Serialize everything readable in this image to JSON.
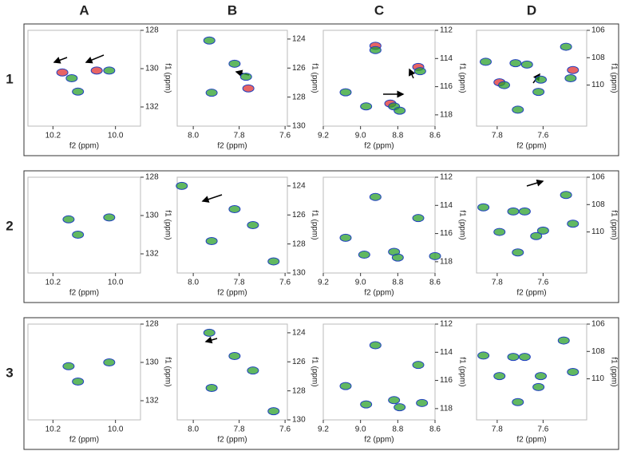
{
  "column_labels": [
    "A",
    "B",
    "C",
    "D"
  ],
  "row_labels": [
    "1",
    "2",
    "3"
  ],
  "chart_data": [
    {
      "type": "scatter",
      "x_label": "f2 (ppm)",
      "y_label": "f1 (ppm)",
      "xlim": [
        10.28,
        9.92
      ],
      "xticks": [
        10.2,
        {
          "value": 10,
          "label": "10.0"
        }
      ],
      "ylim": [
        128,
        133
      ],
      "yticks": [
        128,
        130,
        132
      ],
      "series": [
        {
          "color": "#e03030",
          "x": [
            10.17,
            10.06
          ],
          "y": [
            130.2,
            130.1
          ]
        },
        {
          "color": "#2ca02c",
          "x": [
            10.14,
            10.02,
            10.12
          ],
          "y": [
            130.5,
            130.1,
            131.2
          ]
        }
      ]
    },
    {
      "type": "scatter",
      "x_label": "f2 (ppm)",
      "y_label": "f1 (ppm)",
      "xlim": [
        8.07,
        7.59
      ],
      "xticks": [
        {
          "value": 8,
          "label": "8.0"
        },
        7.8,
        7.6
      ],
      "ylim": [
        123.4,
        130
      ],
      "yticks": [
        124,
        126,
        128,
        130
      ],
      "series": [
        {
          "color": "#e03030",
          "x": [
            7.76
          ],
          "y": [
            127.4
          ]
        },
        {
          "color": "#2ca02c",
          "x": [
            7.93,
            7.82,
            7.77,
            7.92
          ],
          "y": [
            124.1,
            125.7,
            126.6,
            127.7
          ]
        }
      ]
    },
    {
      "type": "scatter",
      "x_label": "f2 (ppm)",
      "y_label": "f1 (ppm)",
      "xlim": [
        9.2,
        8.6
      ],
      "xticks": [
        9.2,
        {
          "value": 9,
          "label": "9.0"
        },
        8.8,
        8.6
      ],
      "ylim": [
        112,
        118.8
      ],
      "yticks": [
        112,
        114,
        116,
        118
      ],
      "series": [
        {
          "color": "#e03030",
          "x": [
            8.92,
            8.69,
            8.84
          ],
          "y": [
            113.1,
            114.6,
            117.2
          ]
        },
        {
          "color": "#2ca02c",
          "x": [
            8.92,
            8.68,
            9.08,
            8.97,
            8.82,
            8.79
          ],
          "y": [
            113.4,
            114.9,
            116.4,
            117.4,
            117.4,
            117.7
          ]
        }
      ]
    },
    {
      "type": "scatter",
      "x_label": "f2 (ppm)",
      "y_label": "f1 (ppm)",
      "xlim": [
        7.89,
        7.41
      ],
      "xticks": [
        7.8,
        7.6
      ],
      "ylim": [
        106,
        113
      ],
      "yticks": [
        106,
        108,
        110
      ],
      "series": [
        {
          "color": "#e03030",
          "x": [
            7.79,
            7.47
          ],
          "y": [
            109.8,
            108.9
          ]
        },
        {
          "color": "#2ca02c",
          "x": [
            7.5,
            7.85,
            7.72,
            7.67,
            7.77,
            7.61,
            7.48,
            7.62,
            7.71
          ],
          "y": [
            107.2,
            108.3,
            108.4,
            108.5,
            110.0,
            109.6,
            109.5,
            110.5,
            111.8
          ]
        }
      ]
    },
    {
      "type": "scatter",
      "x_label": "f2 (ppm)",
      "y_label": "f1 (ppm)",
      "xlim": [
        10.28,
        9.92
      ],
      "xticks": [
        10.2,
        {
          "value": 10,
          "label": "10.0"
        }
      ],
      "ylim": [
        128,
        133
      ],
      "yticks": [
        128,
        130,
        132
      ],
      "series": [
        {
          "color": "#2ca02c",
          "x": [
            10.15,
            10.02,
            10.12
          ],
          "y": [
            130.2,
            130.1,
            131.0
          ]
        }
      ]
    },
    {
      "type": "scatter",
      "x_label": "f2 (ppm)",
      "y_label": "f1 (ppm)",
      "xlim": [
        8.07,
        7.59
      ],
      "xticks": [
        {
          "value": 8,
          "label": "8.0"
        },
        7.8,
        7.6
      ],
      "ylim": [
        123.4,
        130
      ],
      "yticks": [
        124,
        126,
        128,
        130
      ],
      "series": [
        {
          "color": "#2ca02c",
          "x": [
            7.82,
            7.74,
            7.92,
            7.65,
            8.05
          ],
          "y": [
            125.6,
            126.7,
            127.8,
            129.2,
            124.0
          ]
        }
      ]
    },
    {
      "type": "scatter",
      "x_label": "f2 (ppm)",
      "y_label": "f1 (ppm)",
      "xlim": [
        9.2,
        8.6
      ],
      "xticks": [
        9.2,
        {
          "value": 9,
          "label": "9.0"
        },
        8.8,
        8.6
      ],
      "ylim": [
        112,
        118.8
      ],
      "yticks": [
        112,
        114,
        116,
        118
      ],
      "series": [
        {
          "color": "#2ca02c",
          "x": [
            8.92,
            8.69,
            9.08,
            8.98,
            8.82,
            8.8,
            8.6
          ],
          "y": [
            113.4,
            114.9,
            116.3,
            117.5,
            117.3,
            117.7,
            117.6
          ]
        }
      ]
    },
    {
      "type": "scatter",
      "x_label": "f2 (ppm)",
      "y_label": "f1 (ppm)",
      "xlim": [
        7.89,
        7.41
      ],
      "xticks": [
        7.8,
        7.6
      ],
      "ylim": [
        106,
        113
      ],
      "yticks": [
        106,
        108,
        110
      ],
      "series": [
        {
          "color": "#2ca02c",
          "x": [
            7.5,
            7.86,
            7.73,
            7.68,
            7.79,
            7.6,
            7.47,
            7.63,
            7.71
          ],
          "y": [
            107.3,
            108.2,
            108.5,
            108.5,
            110.0,
            109.9,
            109.4,
            110.3,
            111.5
          ]
        }
      ]
    },
    {
      "type": "scatter",
      "x_label": "f2 (ppm)",
      "y_label": "f1 (ppm)",
      "xlim": [
        10.28,
        9.92
      ],
      "xticks": [
        10.2,
        {
          "value": 10,
          "label": "10.0"
        }
      ],
      "ylim": [
        128,
        133
      ],
      "yticks": [
        128,
        130,
        132
      ],
      "series": [
        {
          "color": "#2ca02c",
          "x": [
            10.15,
            10.02,
            10.12
          ],
          "y": [
            130.2,
            130.0,
            131.0
          ]
        }
      ]
    },
    {
      "type": "scatter",
      "x_label": "f2 (ppm)",
      "y_label": "f1 (ppm)",
      "xlim": [
        8.07,
        7.59
      ],
      "xticks": [
        {
          "value": 8,
          "label": "8.0"
        },
        7.8,
        7.6
      ],
      "ylim": [
        123.4,
        130
      ],
      "yticks": [
        124,
        126,
        128,
        130
      ],
      "series": [
        {
          "color": "#2ca02c",
          "x": [
            7.93,
            7.82,
            7.74,
            7.92,
            7.65
          ],
          "y": [
            124.0,
            125.6,
            126.6,
            127.8,
            129.4
          ]
        }
      ]
    },
    {
      "type": "scatter",
      "x_label": "f2 (ppm)",
      "y_label": "f1 (ppm)",
      "xlim": [
        9.2,
        8.6
      ],
      "xticks": [
        9.2,
        {
          "value": 9,
          "label": "9.0"
        },
        8.8,
        8.6
      ],
      "ylim": [
        112,
        118.8
      ],
      "yticks": [
        112,
        114,
        116,
        118
      ],
      "series": [
        {
          "color": "#2ca02c",
          "x": [
            8.92,
            8.69,
            9.08,
            8.97,
            8.82,
            8.79,
            8.67
          ],
          "y": [
            113.5,
            114.9,
            116.4,
            117.7,
            117.4,
            117.9,
            117.6
          ]
        }
      ]
    },
    {
      "type": "scatter",
      "x_label": "f2 (ppm)",
      "y_label": "f1 (ppm)",
      "xlim": [
        7.89,
        7.41
      ],
      "xticks": [
        7.8,
        7.6
      ],
      "ylim": [
        106,
        113
      ],
      "yticks": [
        106,
        108,
        110
      ],
      "series": [
        {
          "color": "#2ca02c",
          "x": [
            7.51,
            7.86,
            7.73,
            7.68,
            7.79,
            7.61,
            7.47,
            7.62,
            7.71
          ],
          "y": [
            107.2,
            108.3,
            108.4,
            108.4,
            109.8,
            109.8,
            109.5,
            110.6,
            111.7
          ]
        }
      ]
    }
  ]
}
